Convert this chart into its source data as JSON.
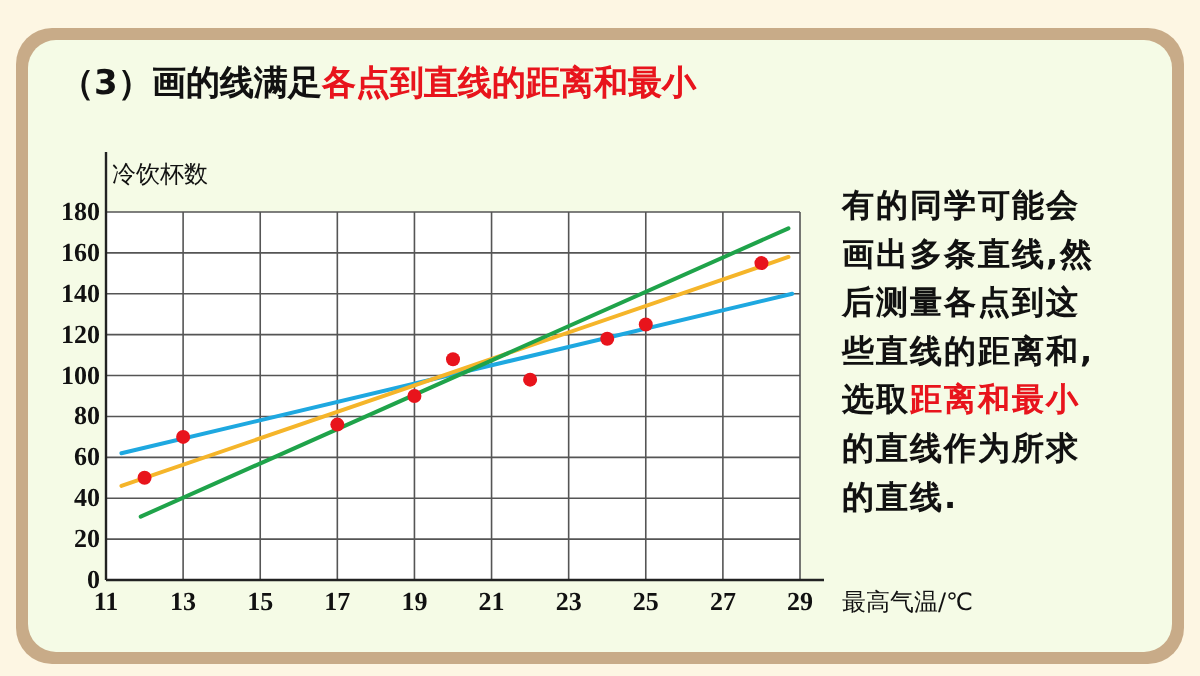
{
  "chart_data": {
    "type": "scatter",
    "title": "（3）画的线满足",
    "subtitle": "各点到直线的距离和最小",
    "xlabel": "最高气温/℃",
    "ylabel": "冷饮杯数",
    "x": [
      12,
      13,
      17,
      19,
      20,
      22,
      24,
      25,
      28
    ],
    "series": [
      {
        "type": "line",
        "color": "#1ea8e0",
        "x": [
          11.4,
          28.8
        ],
        "values": [
          62,
          140
        ]
      },
      {
        "type": "line",
        "color": "#f5b52a",
        "x": [
          11.4,
          28.7
        ],
        "values": [
          46,
          158
        ]
      },
      {
        "type": "line",
        "color": "#1fa34a",
        "x": [
          11.9,
          28.7
        ],
        "values": [
          31,
          172
        ]
      },
      {
        "color": "#e8141c",
        "marker": "circle",
        "values": [
          50,
          70,
          76,
          90,
          108,
          98,
          118,
          125,
          155
        ]
      }
    ],
    "xlim": [
      11,
      29
    ],
    "xticks": [
      11,
      13,
      15,
      17,
      19,
      21,
      23,
      25,
      27,
      29
    ],
    "ylim": [
      0,
      180
    ],
    "yticks": [
      0,
      20,
      40,
      60,
      80,
      100,
      120,
      140,
      160,
      180
    ],
    "grid": true,
    "annotations": [
      "有的同学可能会",
      "画出多条直线,然",
      "后测量各点到这",
      "些直线的距离和,",
      "选取",
      "距离和最小",
      "的直线作为所求",
      "的直线."
    ]
  }
}
